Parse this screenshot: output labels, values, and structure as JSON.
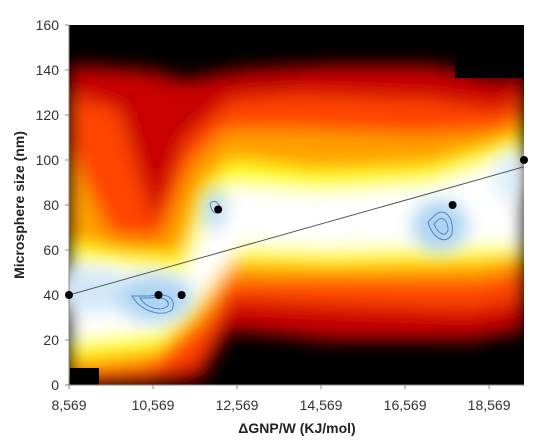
{
  "chart_data": {
    "type": "heatmap",
    "title": "",
    "xlabel": "ΔGNP/W (KJ/mol)",
    "ylabel": "Microsphere size (nm)",
    "xlim": [
      8569,
      19400
    ],
    "ylim": [
      0,
      160
    ],
    "x_ticks": [
      "8,569",
      "10,569",
      "12,569",
      "14,569",
      "16,569",
      "18,569"
    ],
    "x_tick_values": [
      8569,
      10569,
      12569,
      14569,
      16569,
      18569
    ],
    "y_ticks": [
      "0",
      "20",
      "40",
      "60",
      "80",
      "100",
      "120",
      "140",
      "160"
    ],
    "y_tick_values": [
      0,
      20,
      40,
      60,
      80,
      100,
      120,
      140,
      160
    ],
    "grid": false,
    "colormap": [
      "#000000",
      "#c00000",
      "#ff0000",
      "#ffa000",
      "#ffff00",
      "#ffffff",
      "#b8dcf6",
      "#4f8fd0"
    ],
    "points": [
      {
        "x": 8569,
        "y": 40
      },
      {
        "x": 10700,
        "y": 40
      },
      {
        "x": 11250,
        "y": 40
      },
      {
        "x": 12120,
        "y": 78
      },
      {
        "x": 17700,
        "y": 80
      },
      {
        "x": 19400,
        "y": 100
      }
    ],
    "trendline": {
      "x": [
        8569,
        19400
      ],
      "y": [
        40,
        97
      ]
    },
    "colors": {
      "points": "#000000",
      "trendline": "#555555",
      "contour": "#3a6ec0"
    }
  }
}
